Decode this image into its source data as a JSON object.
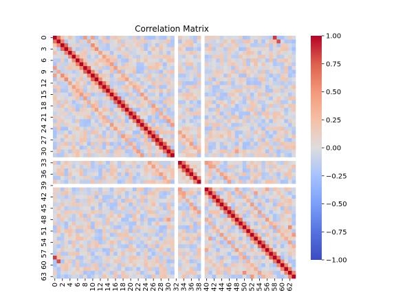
{
  "chart_data": {
    "type": "heatmap",
    "title": "Correlation Matrix",
    "size": 64,
    "x_tick_labels": [
      "0",
      "2",
      "4",
      "6",
      "8",
      "10",
      "12",
      "14",
      "16",
      "18",
      "20",
      "22",
      "24",
      "26",
      "28",
      "30",
      "32",
      "34",
      "36",
      "38",
      "40",
      "42",
      "44",
      "46",
      "48",
      "50",
      "52",
      "54",
      "56",
      "58",
      "60",
      "62"
    ],
    "y_tick_labels": [
      "0",
      "3",
      "6",
      "9",
      "12",
      "15",
      "18",
      "21",
      "24",
      "27",
      "30",
      "33",
      "36",
      "39",
      "42",
      "45",
      "48",
      "51",
      "54",
      "57",
      "60",
      "63"
    ],
    "constant_columns": [
      32,
      39
    ],
    "colorbar": {
      "ticks": [
        "1.00",
        "0.75",
        "0.50",
        "0.25",
        "0.00",
        "−0.25",
        "−0.50",
        "−0.75",
        "−1.00"
      ],
      "range": [
        -1,
        1
      ],
      "colormap": "coolwarm",
      "low_color": "#3b4cc0",
      "mid_color": "#dddddd",
      "high_color": "#b40426"
    },
    "notable_correlations": [
      {
        "i": 0,
        "j": 58,
        "value": 0.85
      },
      {
        "i": 1,
        "j": 59,
        "value": 0.8
      },
      {
        "i": 2,
        "j": 10,
        "value": 0.55
      },
      {
        "i": 3,
        "j": 11,
        "value": 0.55
      },
      {
        "i": 0,
        "j": 10,
        "value": 0.45
      },
      {
        "i": 33,
        "j": 40,
        "value": 0.5
      },
      {
        "i": 34,
        "j": 41,
        "value": 0.45
      },
      {
        "i": 1,
        "j": 9,
        "value": 0.4
      },
      {
        "i": 11,
        "j": 19,
        "value": 0.45
      },
      {
        "i": 41,
        "j": 53,
        "value": 0.45
      },
      {
        "i": 50,
        "j": 62,
        "value": 0.55
      },
      {
        "i": 52,
        "j": 63,
        "value": 0.5
      },
      {
        "i": 40,
        "j": 56,
        "value": 0.4
      },
      {
        "i": 30,
        "j": 48,
        "value": 0.45
      }
    ]
  }
}
